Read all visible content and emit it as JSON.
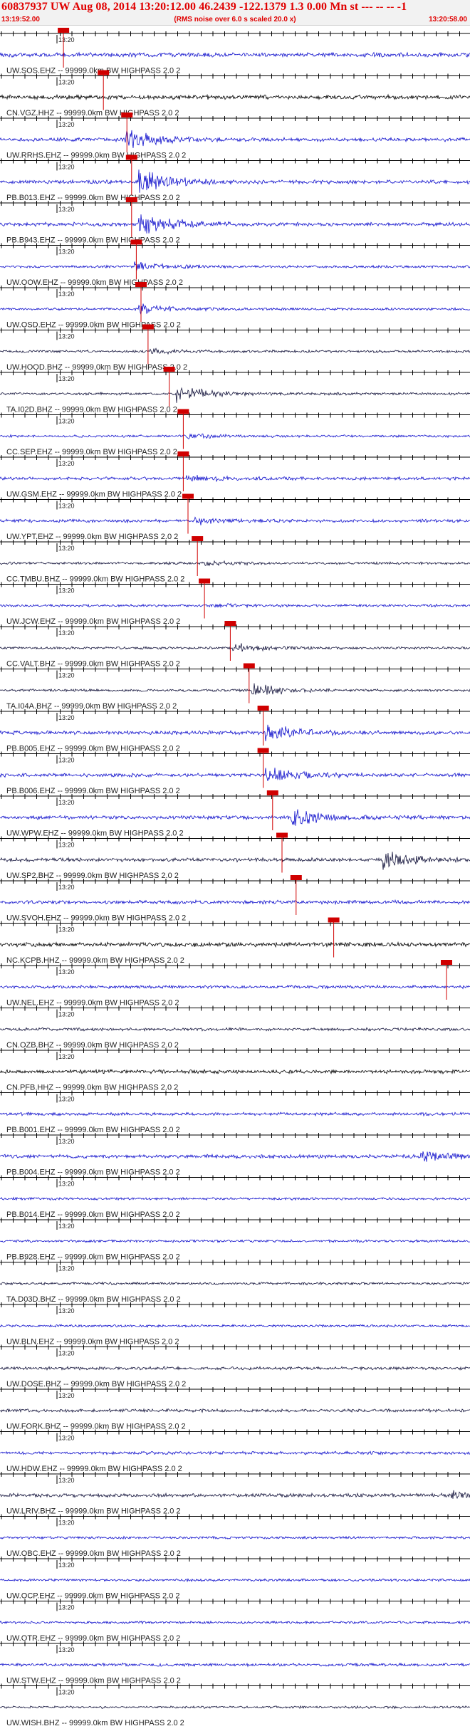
{
  "header": {
    "title": "60837937 UW Aug 08, 2014 13:20:12.00   46.2439 -122.1379  1.3 0.00 Mn st --- -- --  -1",
    "subtitle": "(RMS noise over 6.0 s scaled 20.0 x)",
    "time_start": "13:19:52.00",
    "time_end": "13:20:58.00"
  },
  "colors": {
    "accent": "#e00000",
    "trace_primary": "#1010cc",
    "trace_dark": "#14143c",
    "trace_black": "#000000",
    "pick": "#d00000"
  },
  "chart_data": {
    "type": "seismogram",
    "x_range": [
      "13:19:52.00",
      "13:20:58.00"
    ],
    "minute_tick_label": "13:20",
    "filter_label": "HIGHPASS  2.0  2",
    "traces": [
      {
        "label": "UW.SOS.EHZ -- 99999.0km BW  HIGHPASS  2.0  2",
        "color": "#1010cc",
        "amp": 3.5,
        "pick": 0.135,
        "event": 0,
        "event_amp": 0
      },
      {
        "label": "CN.VGZ.HHZ -- 99999.0km BW  HIGHPASS  2.0  2",
        "color": "#000000",
        "amp": 3.5,
        "pick": 0.22,
        "event": 0,
        "event_amp": 0
      },
      {
        "label": "UW.RRHS.EHZ -- 99999.0km BW  HIGHPASS  2.0  2",
        "color": "#1010cc",
        "amp": 3,
        "pick": 0.27,
        "event": 0.27,
        "event_amp": 14
      },
      {
        "label": "PB.B013.EHZ -- 99999.0km BW  HIGHPASS  2.0  2",
        "color": "#1010cc",
        "amp": 3,
        "pick": 0.28,
        "event": 0.3,
        "event_amp": 19
      },
      {
        "label": "PB.B943.EHZ -- 99999.0km BW  HIGHPASS  2.0  2",
        "color": "#1010cc",
        "amp": 3,
        "pick": 0.28,
        "event": 0.3,
        "event_amp": 19
      },
      {
        "label": "UW.OOW.EHZ -- 99999.0km BW  HIGHPASS  2.0  2",
        "color": "#1010cc",
        "amp": 2,
        "pick": 0.29,
        "event": 0.29,
        "event_amp": 7
      },
      {
        "label": "UW.OSD.EHZ -- 99999.0km BW  HIGHPASS  2.0  2",
        "color": "#1010cc",
        "amp": 2,
        "pick": 0.3,
        "event": 0.3,
        "event_amp": 7
      },
      {
        "label": "UW.HOOD.BHZ -- 99999.0km BW  HIGHPASS  2.0  2",
        "color": "#14143c",
        "amp": 2,
        "pick": 0.315,
        "event": 0.32,
        "event_amp": 4
      },
      {
        "label": "TA.I02D.BHZ -- 99999.0km BW  HIGHPASS  2.0  2",
        "color": "#14143c",
        "amp": 2,
        "pick": 0.36,
        "event": 0.38,
        "event_amp": 14
      },
      {
        "label": "CC.SEP.EHZ -- 99999.0km BW  HIGHPASS  2.0  2",
        "color": "#1010cc",
        "amp": 2,
        "pick": 0.39,
        "event": 0.4,
        "event_amp": 3
      },
      {
        "label": "UW.GSM.EHZ -- 99999.0km BW  HIGHPASS  2.0  2",
        "color": "#1010cc",
        "amp": 2.5,
        "pick": 0.39,
        "event": 0.4,
        "event_amp": 5
      },
      {
        "label": "UW.YPT.EHZ -- 99999.0km BW  HIGHPASS  2.0  2",
        "color": "#1010cc",
        "amp": 2.5,
        "pick": 0.4,
        "event": 0.42,
        "event_amp": 5
      },
      {
        "label": "CC.TMBU.BHZ -- 99999.0km BW  HIGHPASS  2.0  2",
        "color": "#14143c",
        "amp": 2,
        "pick": 0.42,
        "event": 0.44,
        "event_amp": 3
      },
      {
        "label": "UW.JCW.EHZ -- 99999.0km BW  HIGHPASS  2.0  2",
        "color": "#1010cc",
        "amp": 2,
        "pick": 0.435,
        "event": 0.45,
        "event_amp": 3
      },
      {
        "label": "CC.VALT.BHZ -- 99999.0km BW  HIGHPASS  2.0  2",
        "color": "#14143c",
        "amp": 2,
        "pick": 0.49,
        "event": 0.5,
        "event_amp": 7
      },
      {
        "label": "TA.I04A.BHZ -- 99999.0km BW  HIGHPASS  2.0  2",
        "color": "#14143c",
        "amp": 2,
        "pick": 0.53,
        "event": 0.54,
        "event_amp": 11
      },
      {
        "label": "PB.B005.EHZ -- 99999.0km BW  HIGHPASS  2.0  2",
        "color": "#1010cc",
        "amp": 3,
        "pick": 0.56,
        "event": 0.57,
        "event_amp": 12
      },
      {
        "label": "PB.B006.EHZ -- 99999.0km BW  HIGHPASS  2.0  2",
        "color": "#1010cc",
        "amp": 3,
        "pick": 0.56,
        "event": 0.57,
        "event_amp": 12
      },
      {
        "label": "UW.WPW.EHZ -- 99999.0km BW  HIGHPASS  2.0  2",
        "color": "#1010cc",
        "amp": 3,
        "pick": 0.58,
        "event": 0.62,
        "event_amp": 14
      },
      {
        "label": "UW.SP2.BHZ -- 99999.0km BW  HIGHPASS  2.0  2",
        "color": "#14143c",
        "amp": 3,
        "pick": 0.6,
        "event": 0.82,
        "event_amp": 13
      },
      {
        "label": "UW.SVOH.EHZ -- 99999.0km BW  HIGHPASS  2.0  2",
        "color": "#1010cc",
        "amp": 3,
        "pick": 0.63,
        "event": 0,
        "event_amp": 0
      },
      {
        "label": "NC.KCPB.HHZ -- 99999.0km BW  HIGHPASS  2.0  2",
        "color": "#000000",
        "amp": 3.5,
        "pick": 0.71,
        "event": 0,
        "event_amp": 0
      },
      {
        "label": "UW.NEL.EHZ -- 99999.0km BW  HIGHPASS  2.0  2",
        "color": "#1010cc",
        "amp": 2.5,
        "pick": 0.95,
        "event": 0,
        "event_amp": 0
      },
      {
        "label": "CN.OZB.BHZ -- 99999.0km BW  HIGHPASS  2.0  2",
        "color": "#14143c",
        "amp": 2.5,
        "pick": null,
        "event": 0,
        "event_amp": 0
      },
      {
        "label": "CN.PFB.HHZ -- 99999.0km BW  HIGHPASS  2.0  2",
        "color": "#000000",
        "amp": 3,
        "pick": null,
        "event": 0,
        "event_amp": 0
      },
      {
        "label": "PB.B001.EHZ -- 99999.0km BW  HIGHPASS  2.0  2",
        "color": "#1010cc",
        "amp": 2.5,
        "pick": null,
        "event": 0,
        "event_amp": 0
      },
      {
        "label": "PB.B004.EHZ -- 99999.0km BW  HIGHPASS  2.0  2",
        "color": "#1010cc",
        "amp": 3,
        "pick": null,
        "event": 0.9,
        "event_amp": 7
      },
      {
        "label": "PB.B014.EHZ -- 99999.0km BW  HIGHPASS  2.0  2",
        "color": "#1010cc",
        "amp": 2,
        "pick": null,
        "event": 0,
        "event_amp": 0
      },
      {
        "label": "PB.B928.EHZ -- 99999.0km BW  HIGHPASS  2.0  2",
        "color": "#1010cc",
        "amp": 2,
        "pick": null,
        "event": 0,
        "event_amp": 0
      },
      {
        "label": "TA.D03D.BHZ -- 99999.0km BW  HIGHPASS  2.0  2",
        "color": "#14143c",
        "amp": 2,
        "pick": null,
        "event": 0,
        "event_amp": 0
      },
      {
        "label": "UW.BLN.EHZ -- 99999.0km BW  HIGHPASS  2.0  2",
        "color": "#1010cc",
        "amp": 2,
        "pick": null,
        "event": 0,
        "event_amp": 0
      },
      {
        "label": "UW.DOSE.BHZ -- 99999.0km BW  HIGHPASS  2.0  2",
        "color": "#14143c",
        "amp": 2.5,
        "pick": null,
        "event": 0,
        "event_amp": 0
      },
      {
        "label": "UW.FORK.BHZ -- 99999.0km BW  HIGHPASS  2.0  2",
        "color": "#14143c",
        "amp": 2.5,
        "pick": null,
        "event": 0,
        "event_amp": 0
      },
      {
        "label": "UW.HDW.EHZ -- 99999.0km BW  HIGHPASS  2.0  2",
        "color": "#1010cc",
        "amp": 2.5,
        "pick": null,
        "event": 0,
        "event_amp": 0
      },
      {
        "label": "UW.LRIV.BHZ -- 99999.0km BW  HIGHPASS  2.0  2",
        "color": "#14143c",
        "amp": 3,
        "pick": null,
        "event": 0.965,
        "event_amp": 7
      },
      {
        "label": "UW.OBC.EHZ -- 99999.0km BW  HIGHPASS  2.0  2",
        "color": "#1010cc",
        "amp": 2,
        "pick": null,
        "event": 0,
        "event_amp": 0
      },
      {
        "label": "UW.OCP.EHZ -- 99999.0km BW  HIGHPASS  2.0  2",
        "color": "#1010cc",
        "amp": 2,
        "pick": null,
        "event": 0,
        "event_amp": 0
      },
      {
        "label": "UW.OTR.EHZ -- 99999.0km BW  HIGHPASS  2.0  2",
        "color": "#1010cc",
        "amp": 2,
        "pick": null,
        "event": 0,
        "event_amp": 0
      },
      {
        "label": "UW.STW.EHZ -- 99999.0km BW  HIGHPASS  2.0  2",
        "color": "#1010cc",
        "amp": 2.5,
        "pick": null,
        "event": 0,
        "event_amp": 0
      },
      {
        "label": "UW.WISH.BHZ -- 99999.0km BW  HIGHPASS  2.0  2",
        "color": "#14143c",
        "amp": 2,
        "pick": null,
        "event": 0,
        "event_amp": 0
      }
    ]
  }
}
